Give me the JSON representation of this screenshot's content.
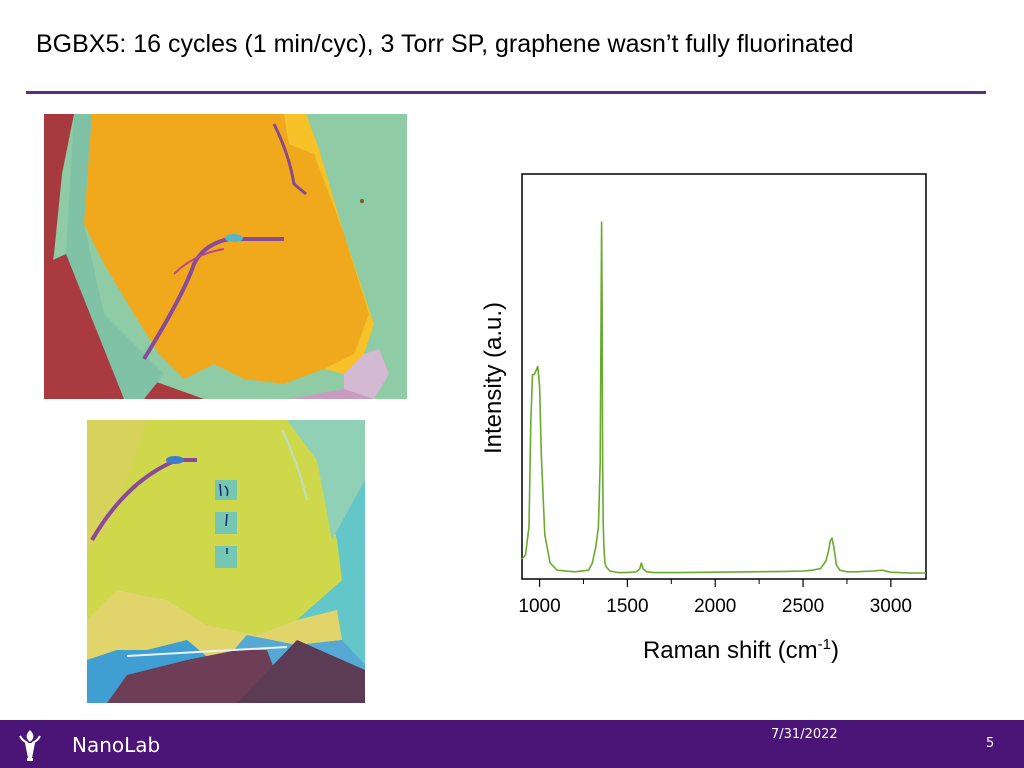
{
  "slide": {
    "title": "BGBX5: 16 cycles (1 min/cyc), 3 Torr SP, graphene wasn’t fully fluorinated"
  },
  "footer": {
    "brand": "NanoLab",
    "date": "7/31/2022",
    "page_number": "5",
    "logo_icon": "torch-icon"
  },
  "colors": {
    "accent_rule": "#5a2d82",
    "footer_bg": "#4b1577",
    "spectrum_line": "#6aaa2e"
  },
  "chart_data": {
    "type": "line",
    "xlabel": "Raman shift (cm",
    "xlabel_superscript": "-1",
    "xlabel_suffix": ")",
    "ylabel": "Intensity (a.u.)",
    "xlim": [
      900,
      3200
    ],
    "ylim": [
      0,
      1
    ],
    "x_ticks": [
      1000,
      1500,
      2000,
      2500,
      3000
    ],
    "x_minor_ticks": [
      1250,
      1750,
      2250,
      2750
    ],
    "series": [
      {
        "x": [
          900,
          920,
          940,
          950,
          960,
          970,
          980,
          990,
          1000,
          1010,
          1030,
          1060,
          1100,
          1200,
          1280,
          1300,
          1320,
          1335,
          1345,
          1350,
          1353,
          1356,
          1359,
          1362,
          1366,
          1372,
          1380,
          1400,
          1450,
          1500,
          1550,
          1570,
          1580,
          1590,
          1610,
          1650,
          1800,
          2000,
          2200,
          2400,
          2500,
          2550,
          2600,
          2630,
          2645,
          2655,
          2665,
          2675,
          2690,
          2710,
          2750,
          2800,
          2900,
          2950,
          3000,
          3100,
          3200
        ],
        "y": [
          0.04,
          0.05,
          0.12,
          0.38,
          0.5,
          0.5,
          0.51,
          0.52,
          0.47,
          0.3,
          0.1,
          0.03,
          0.012,
          0.008,
          0.012,
          0.03,
          0.07,
          0.12,
          0.28,
          0.62,
          0.88,
          0.68,
          0.3,
          0.13,
          0.07,
          0.03,
          0.02,
          0.01,
          0.006,
          0.006,
          0.008,
          0.015,
          0.03,
          0.015,
          0.008,
          0.006,
          0.006,
          0.007,
          0.008,
          0.009,
          0.01,
          0.012,
          0.016,
          0.035,
          0.06,
          0.085,
          0.092,
          0.07,
          0.025,
          0.012,
          0.008,
          0.008,
          0.01,
          0.012,
          0.007,
          0.005,
          0.005
        ]
      }
    ]
  }
}
